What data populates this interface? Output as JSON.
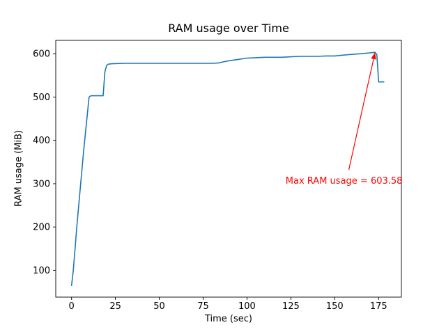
{
  "chart_data": {
    "type": "line",
    "title": "RAM usage over Time",
    "xlabel": "Time (sec)",
    "ylabel": "RAM usage (MiB)",
    "xlim": [
      -9,
      188
    ],
    "ylim": [
      38,
      631
    ],
    "xticks": [
      0,
      25,
      50,
      75,
      100,
      125,
      150,
      175
    ],
    "yticks": [
      100,
      200,
      300,
      400,
      500,
      600
    ],
    "grid": false,
    "legend": "none",
    "line_color": "#1f77b4",
    "series": [
      {
        "name": "RAM usage",
        "x": [
          0,
          1,
          3,
          5,
          7,
          9,
          10,
          11,
          18,
          19,
          20,
          21,
          23,
          30,
          40,
          50,
          60,
          70,
          80,
          84,
          86,
          90,
          95,
          100,
          105,
          110,
          115,
          120,
          125,
          130,
          135,
          140,
          145,
          150,
          155,
          158,
          161,
          164,
          167,
          170,
          172,
          173,
          174,
          175,
          178
        ],
        "y": [
          65,
          100,
          200,
          290,
          380,
          460,
          500,
          503,
          503,
          558,
          573,
          576,
          577,
          578,
          578,
          578,
          578,
          578,
          578,
          579,
          581,
          584,
          587,
          590,
          591,
          592,
          592,
          592,
          593,
          594,
          594,
          594,
          595,
          595,
          597,
          598,
          599,
          600,
          601,
          602,
          603,
          603.58,
          598,
          535,
          535
        ]
      }
    ],
    "annotation": {
      "text": "Max RAM usage = 603.58",
      "color": "#ff0000",
      "xy": [
        173,
        603.58
      ],
      "arrow_start": [
        158,
        332
      ],
      "text_pos": [
        122,
        300
      ]
    }
  }
}
